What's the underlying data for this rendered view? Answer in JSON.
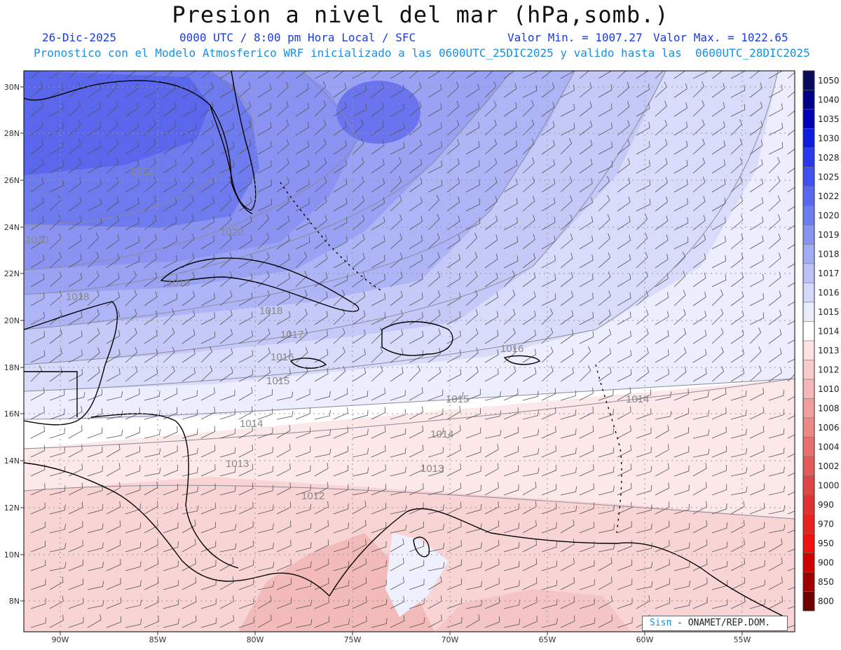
{
  "header": {
    "title": "Presion a nivel del mar (hPa,somb.)",
    "date": "26-Dic-2025",
    "time_info": "0000 UTC / 8:00 pm Hora Local / SFC",
    "min_label": "Valor Min. = 1007.27",
    "max_label": "Valor Max. = 1022.65",
    "model_info": "Pronostico con el Modelo Atmosferico WRF inicializado a las 0600UTC_25DIC2025 y valido hasta las  0600UTC_28DIC2025"
  },
  "map": {
    "lat_ticks": [
      "30N",
      "28N",
      "26N",
      "24N",
      "22N",
      "20N",
      "18N",
      "16N",
      "14N",
      "12N",
      "10N",
      "8N"
    ],
    "lon_ticks": [
      "90W",
      "85W",
      "80W",
      "75W",
      "70W",
      "65W",
      "60W",
      "55W"
    ],
    "contour_labels": [
      "1022",
      "1020",
      "1020",
      "1019",
      "1018",
      "1018",
      "1017",
      "1016",
      "1016",
      "1015",
      "1015",
      "1014",
      "1014",
      "1014",
      "1013",
      "1013",
      "1012"
    ]
  },
  "colorbar": {
    "levels": [
      "1050",
      "1040",
      "1035",
      "1030",
      "1028",
      "1025",
      "1022",
      "1020",
      "1019",
      "1018",
      "1017",
      "1016",
      "1015",
      "1014",
      "1013",
      "1012",
      "1010",
      "1008",
      "1006",
      "1004",
      "1002",
      "1000",
      "990",
      "970",
      "950",
      "900",
      "850",
      "800"
    ],
    "colors": [
      "#0a0a5a",
      "#00008a",
      "#0000b8",
      "#0c1ce0",
      "#2838f0",
      "#4050f0",
      "#5868f0",
      "#6e7ef0",
      "#8894f2",
      "#a2acf4",
      "#bcc2f7",
      "#d4d8fa",
      "#eaecfc",
      "#ffffff",
      "#fce2e2",
      "#f8cccc",
      "#f4b6b6",
      "#f09e9e",
      "#ec8888",
      "#e87070",
      "#e45a5a",
      "#e04444",
      "#e03030",
      "#e82020",
      "#f01010",
      "#d00000",
      "#a00000",
      "#700000"
    ]
  },
  "credit": {
    "brand": "Sisπ",
    "org": "- ONAMET/REP.DOM."
  }
}
